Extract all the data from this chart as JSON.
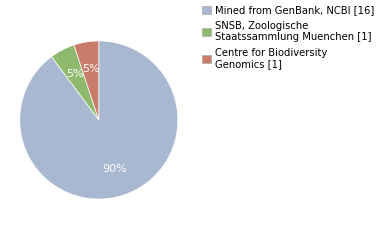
{
  "legend_labels": [
    "Mined from GenBank, NCBI [16]",
    "SNSB, Zoologische\nStaatssammlung Muenchen [1]",
    "Centre for Biodiversity\nGenomics [1]"
  ],
  "values": [
    88,
    5,
    5
  ],
  "colors": [
    "#a8b8d0",
    "#8fba6e",
    "#c97c6a"
  ],
  "background_color": "#ffffff",
  "text_color": "#ffffff",
  "fontsize": 8,
  "legend_fontsize": 7.2
}
